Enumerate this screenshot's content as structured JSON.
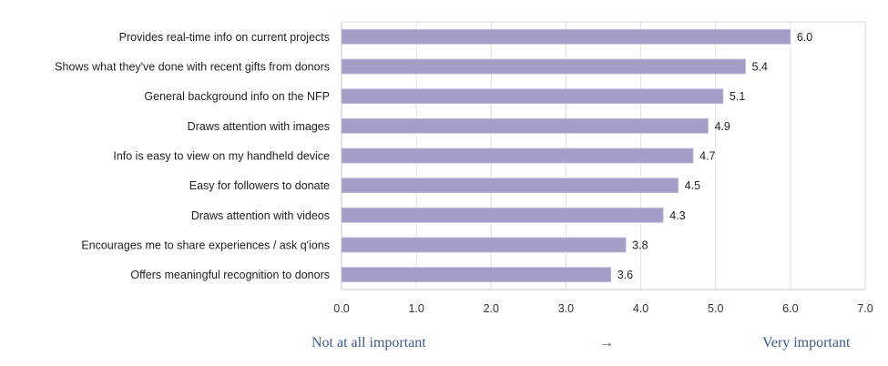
{
  "chart_data": {
    "type": "bar",
    "orientation": "horizontal",
    "categories": [
      "Provides real-time info on current projects",
      "Shows what they've done with recent gifts from donors",
      "General background info on the NFP",
      "Draws attention with images",
      "Info is easy to view on my handheld device",
      "Easy for followers to donate",
      "Draws attention with videos",
      "Encourages me to share experiences / ask q'ions",
      "Offers meaningful recognition to donors"
    ],
    "values": [
      6.0,
      5.4,
      5.1,
      4.9,
      4.7,
      4.5,
      4.3,
      3.8,
      3.6
    ],
    "data_labels": [
      "6.0",
      "5.4",
      "5.1",
      "4.9",
      "4.7",
      "4.5",
      "4.3",
      "3.8",
      "3.6"
    ],
    "xlim": [
      0,
      7
    ],
    "xticks": [
      "0.0",
      "1.0",
      "2.0",
      "3.0",
      "4.0",
      "5.0",
      "6.0",
      "7.0"
    ],
    "grid": "vertical",
    "bar_color": "#a49dc8",
    "title": "",
    "xlabel": "",
    "ylabel": ""
  },
  "scale_labels": {
    "low": "Not at all important",
    "arrow": "→",
    "high": "Very important"
  }
}
